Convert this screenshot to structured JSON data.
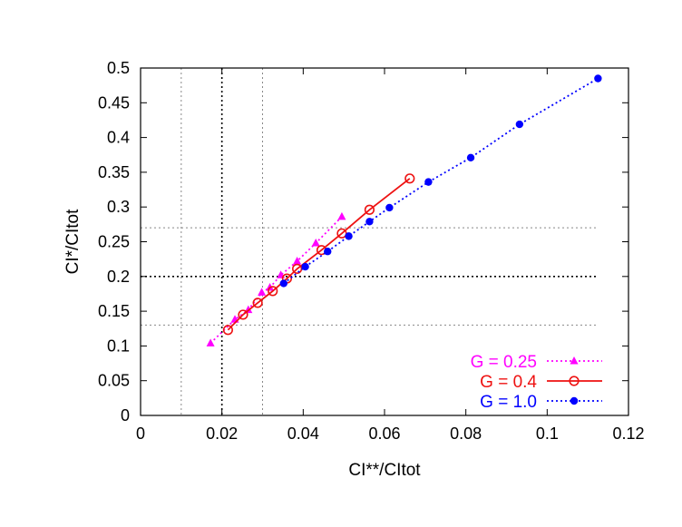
{
  "chart_data": {
    "type": "line",
    "xlabel": "CI**/CItot",
    "ylabel": "CI*/CItot",
    "xlim": [
      0,
      0.12
    ],
    "ylim": [
      0,
      0.5
    ],
    "x_ticks": [
      0,
      0.02,
      0.04,
      0.06,
      0.08,
      0.1,
      0.12
    ],
    "x_tick_labels": [
      "0",
      "0.02",
      "0.04",
      "0.06",
      "0.08",
      "0.1",
      "0.12"
    ],
    "y_ticks": [
      0,
      0.05,
      0.1,
      0.15,
      0.2,
      0.25,
      0.3,
      0.35,
      0.4,
      0.45,
      0.5
    ],
    "y_tick_labels": [
      "0",
      "0.05",
      "0.1",
      "0.15",
      "0.2",
      "0.25",
      "0.3",
      "0.35",
      "0.4",
      "0.45",
      "0.5"
    ],
    "legend_position": "bottom-right",
    "reference_lines": {
      "vertical": [
        {
          "x": 0.01,
          "style": "dotted-light"
        },
        {
          "x": 0.02,
          "style": "dotted-dark"
        },
        {
          "x": 0.03,
          "style": "dotted-light"
        }
      ],
      "horizontal": [
        {
          "y": 0.13,
          "style": "dotted-light"
        },
        {
          "y": 0.2,
          "style": "dotted-dark"
        },
        {
          "y": 0.27,
          "style": "dotted-light"
        }
      ]
    },
    "series": [
      {
        "name": "G = 0.25",
        "color": "#ff00ff",
        "line_style": "dotted",
        "marker": "triangle",
        "x": [
          0.0172,
          0.0232,
          0.0265,
          0.0298,
          0.0318,
          0.0345,
          0.0385,
          0.0431,
          0.0495
        ],
        "y": [
          0.104,
          0.138,
          0.152,
          0.177,
          0.184,
          0.202,
          0.222,
          0.248,
          0.286
        ]
      },
      {
        "name": "G = 0.4",
        "color": "#ee1111",
        "line_style": "solid",
        "marker": "open-circle",
        "x": [
          0.0215,
          0.0252,
          0.0288,
          0.0325,
          0.036,
          0.0385,
          0.0445,
          0.0495,
          0.0563,
          0.0662
        ],
        "y": [
          0.123,
          0.145,
          0.162,
          0.179,
          0.197,
          0.211,
          0.238,
          0.262,
          0.296,
          0.341
        ]
      },
      {
        "name": "G = 1.0",
        "color": "#0000ff",
        "line_style": "dotted",
        "marker": "filled-circle",
        "x": [
          0.0352,
          0.0405,
          0.046,
          0.0512,
          0.0563,
          0.0612,
          0.0708,
          0.0812,
          0.0932,
          0.1125
        ],
        "y": [
          0.19,
          0.214,
          0.236,
          0.258,
          0.279,
          0.299,
          0.336,
          0.371,
          0.419,
          0.485
        ]
      }
    ]
  }
}
